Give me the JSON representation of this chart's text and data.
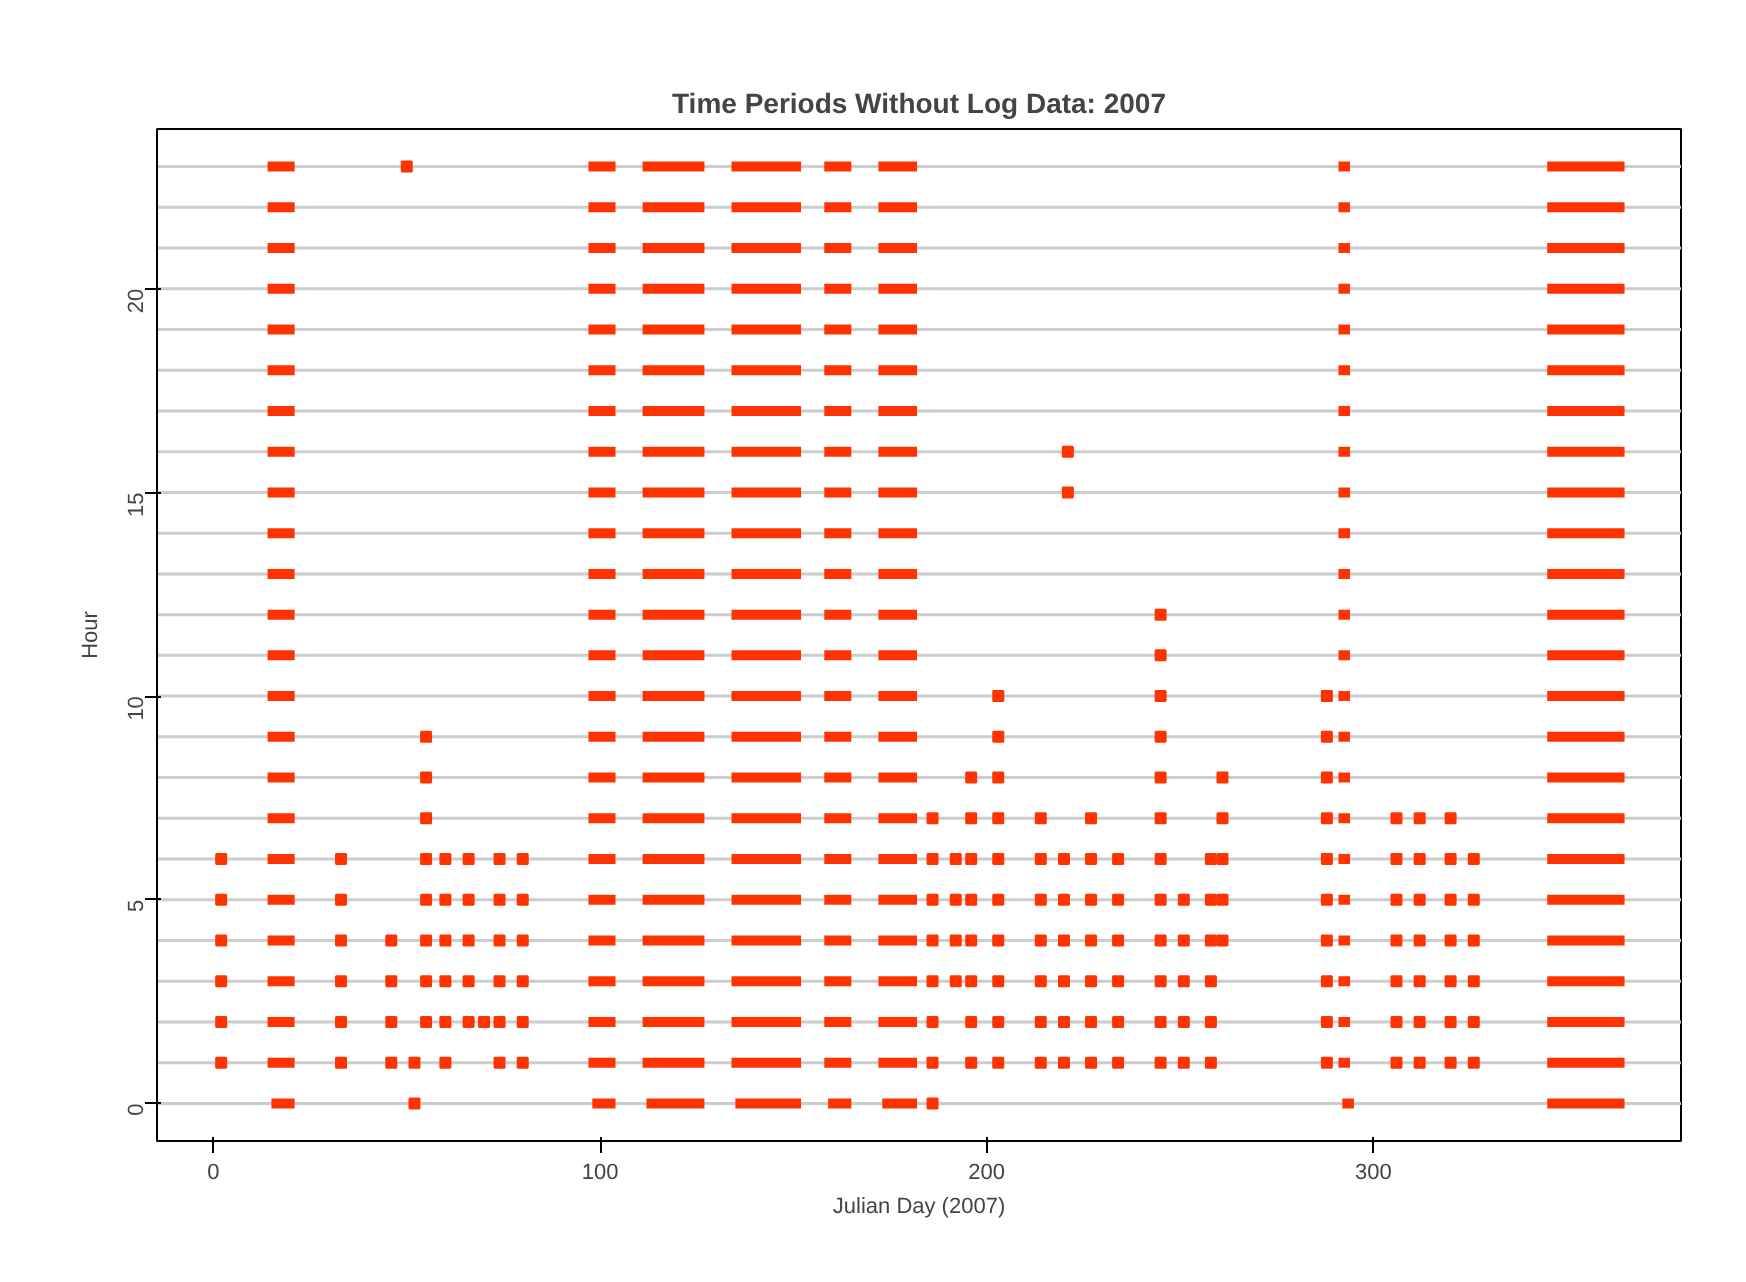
{
  "chart_data": {
    "type": "scatter",
    "title": "Time Periods Without Log Data: 2007",
    "xlabel": "Julian Day (2007)",
    "ylabel": "Hour",
    "xlim": [
      -14.6,
      379.6
    ],
    "ylim": [
      -0.92,
      23.92
    ],
    "xticks": [
      0,
      100,
      200,
      300
    ],
    "yticks": [
      0,
      5,
      10,
      15,
      20
    ],
    "grid": false,
    "marker": "square",
    "line_style": "solid",
    "ref_lines": [
      {
        "axis": "y",
        "value": 0,
        "color": "#cccccc"
      },
      {
        "axis": "y",
        "value": 1,
        "color": "#cccccc"
      },
      {
        "axis": "y",
        "value": 2,
        "color": "#cccccc"
      },
      {
        "axis": "y",
        "value": 3,
        "color": "#cccccc"
      },
      {
        "axis": "y",
        "value": 4,
        "color": "#cccccc"
      },
      {
        "axis": "y",
        "value": 5,
        "color": "#cccccc"
      },
      {
        "axis": "y",
        "value": 6,
        "color": "#cccccc"
      },
      {
        "axis": "y",
        "value": 7,
        "color": "#cccccc"
      },
      {
        "axis": "y",
        "value": 8,
        "color": "#cccccc"
      },
      {
        "axis": "y",
        "value": 9,
        "color": "#cccccc"
      },
      {
        "axis": "y",
        "value": 10,
        "color": "#cccccc"
      },
      {
        "axis": "y",
        "value": 11,
        "color": "#cccccc"
      },
      {
        "axis": "y",
        "value": 12,
        "color": "#cccccc"
      },
      {
        "axis": "y",
        "value": 13,
        "color": "#cccccc"
      },
      {
        "axis": "y",
        "value": 14,
        "color": "#cccccc"
      },
      {
        "axis": "y",
        "value": 15,
        "color": "#cccccc"
      },
      {
        "axis": "y",
        "value": 16,
        "color": "#cccccc"
      },
      {
        "axis": "y",
        "value": 17,
        "color": "#cccccc"
      },
      {
        "axis": "y",
        "value": 18,
        "color": "#cccccc"
      },
      {
        "axis": "y",
        "value": 19,
        "color": "#cccccc"
      },
      {
        "axis": "y",
        "value": 20,
        "color": "#cccccc"
      },
      {
        "axis": "y",
        "value": 21,
        "color": "#cccccc"
      },
      {
        "axis": "y",
        "value": 22,
        "color": "#cccccc"
      },
      {
        "axis": "y",
        "value": 23,
        "color": "#cccccc"
      }
    ],
    "series": [
      {
        "type": "line",
        "marker": "none",
        "color": "#ff3300",
        "x": [
          15,
          21,
          null,
          98,
          104,
          null,
          112,
          127,
          null,
          135,
          152,
          null,
          159,
          165,
          null,
          173,
          182,
          null,
          292,
          295,
          null,
          345,
          365
        ],
        "values": [
          0,
          0,
          null,
          0,
          0,
          null,
          0,
          0,
          null,
          0,
          0,
          null,
          0,
          0,
          null,
          0,
          0,
          null,
          0,
          0,
          null,
          0,
          0
        ]
      },
      {
        "type": "line",
        "marker": "none",
        "color": "#ff3300",
        "x": [
          14,
          21,
          null,
          97,
          104,
          null,
          111,
          127,
          null,
          134,
          152,
          null,
          158,
          165,
          null,
          172,
          182,
          null,
          291,
          294,
          null,
          345,
          365
        ],
        "values": [
          1,
          1,
          null,
          1,
          1,
          null,
          1,
          1,
          null,
          1,
          1,
          null,
          1,
          1,
          null,
          1,
          1,
          null,
          1,
          1,
          null,
          1,
          1
        ]
      },
      {
        "type": "line",
        "marker": "none",
        "color": "#ff3300",
        "x": [
          14,
          21,
          null,
          97,
          104,
          null,
          111,
          127,
          null,
          134,
          152,
          null,
          158,
          165,
          null,
          172,
          182,
          null,
          291,
          294,
          null,
          345,
          365
        ],
        "values": [
          2,
          2,
          null,
          2,
          2,
          null,
          2,
          2,
          null,
          2,
          2,
          null,
          2,
          2,
          null,
          2,
          2,
          null,
          2,
          2,
          null,
          2,
          2
        ]
      },
      {
        "type": "line",
        "marker": "none",
        "color": "#ff3300",
        "x": [
          14,
          21,
          null,
          97,
          104,
          null,
          111,
          127,
          null,
          134,
          152,
          null,
          158,
          165,
          null,
          172,
          182,
          null,
          291,
          294,
          null,
          345,
          365
        ],
        "values": [
          3,
          3,
          null,
          3,
          3,
          null,
          3,
          3,
          null,
          3,
          3,
          null,
          3,
          3,
          null,
          3,
          3,
          null,
          3,
          3,
          null,
          3,
          3
        ]
      },
      {
        "type": "line",
        "marker": "none",
        "color": "#ff3300",
        "x": [
          14,
          21,
          null,
          97,
          104,
          null,
          111,
          127,
          null,
          134,
          152,
          null,
          158,
          165,
          null,
          172,
          182,
          null,
          291,
          294,
          null,
          345,
          365
        ],
        "values": [
          4,
          4,
          null,
          4,
          4,
          null,
          4,
          4,
          null,
          4,
          4,
          null,
          4,
          4,
          null,
          4,
          4,
          null,
          4,
          4,
          null,
          4,
          4
        ]
      },
      {
        "type": "line",
        "marker": "none",
        "color": "#ff3300",
        "x": [
          14,
          21,
          null,
          97,
          104,
          null,
          111,
          127,
          null,
          134,
          152,
          null,
          158,
          165,
          null,
          172,
          182,
          null,
          291,
          294,
          null,
          345,
          365
        ],
        "values": [
          5,
          5,
          null,
          5,
          5,
          null,
          5,
          5,
          null,
          5,
          5,
          null,
          5,
          5,
          null,
          5,
          5,
          null,
          5,
          5,
          null,
          5,
          5
        ]
      },
      {
        "type": "line",
        "marker": "none",
        "color": "#ff3300",
        "x": [
          14,
          21,
          null,
          97,
          104,
          null,
          111,
          127,
          null,
          134,
          152,
          null,
          158,
          165,
          null,
          172,
          182,
          null,
          291,
          294,
          null,
          345,
          365
        ],
        "values": [
          6,
          6,
          null,
          6,
          6,
          null,
          6,
          6,
          null,
          6,
          6,
          null,
          6,
          6,
          null,
          6,
          6,
          null,
          6,
          6,
          null,
          6,
          6
        ]
      },
      {
        "type": "line",
        "marker": "none",
        "color": "#ff3300",
        "x": [
          14,
          21,
          null,
          97,
          104,
          null,
          111,
          127,
          null,
          134,
          152,
          null,
          158,
          165,
          null,
          172,
          182,
          null,
          291,
          294,
          null,
          345,
          365
        ],
        "values": [
          7,
          7,
          null,
          7,
          7,
          null,
          7,
          7,
          null,
          7,
          7,
          null,
          7,
          7,
          null,
          7,
          7,
          null,
          7,
          7,
          null,
          7,
          7
        ]
      },
      {
        "type": "line",
        "marker": "none",
        "color": "#ff3300",
        "x": [
          14,
          21,
          null,
          97,
          104,
          null,
          111,
          127,
          null,
          134,
          152,
          null,
          158,
          165,
          null,
          172,
          182,
          null,
          291,
          294,
          null,
          345,
          365
        ],
        "values": [
          8,
          8,
          null,
          8,
          8,
          null,
          8,
          8,
          null,
          8,
          8,
          null,
          8,
          8,
          null,
          8,
          8,
          null,
          8,
          8,
          null,
          8,
          8
        ]
      },
      {
        "type": "line",
        "marker": "none",
        "color": "#ff3300",
        "x": [
          14,
          21,
          null,
          97,
          104,
          null,
          111,
          127,
          null,
          134,
          152,
          null,
          158,
          165,
          null,
          172,
          182,
          null,
          291,
          294,
          null,
          345,
          365
        ],
        "values": [
          9,
          9,
          null,
          9,
          9,
          null,
          9,
          9,
          null,
          9,
          9,
          null,
          9,
          9,
          null,
          9,
          9,
          null,
          9,
          9,
          null,
          9,
          9
        ]
      },
      {
        "type": "line",
        "marker": "none",
        "color": "#ff3300",
        "x": [
          14,
          21,
          null,
          97,
          104,
          null,
          111,
          127,
          null,
          134,
          152,
          null,
          158,
          165,
          null,
          172,
          182,
          null,
          291,
          294,
          null,
          345,
          365
        ],
        "values": [
          10,
          10,
          null,
          10,
          10,
          null,
          10,
          10,
          null,
          10,
          10,
          null,
          10,
          10,
          null,
          10,
          10,
          null,
          10,
          10,
          null,
          10,
          10
        ]
      },
      {
        "type": "line",
        "marker": "none",
        "color": "#ff3300",
        "x": [
          14,
          21,
          null,
          97,
          104,
          null,
          111,
          127,
          null,
          134,
          152,
          null,
          158,
          165,
          null,
          172,
          182,
          null,
          291,
          294,
          null,
          345,
          365
        ],
        "values": [
          11,
          11,
          null,
          11,
          11,
          null,
          11,
          11,
          null,
          11,
          11,
          null,
          11,
          11,
          null,
          11,
          11,
          null,
          11,
          11,
          null,
          11,
          11
        ]
      },
      {
        "type": "line",
        "marker": "none",
        "color": "#ff3300",
        "x": [
          14,
          21,
          null,
          97,
          104,
          null,
          111,
          127,
          null,
          134,
          152,
          null,
          158,
          165,
          null,
          172,
          182,
          null,
          291,
          294,
          null,
          345,
          365
        ],
        "values": [
          12,
          12,
          null,
          12,
          12,
          null,
          12,
          12,
          null,
          12,
          12,
          null,
          12,
          12,
          null,
          12,
          12,
          null,
          12,
          12,
          null,
          12,
          12
        ]
      },
      {
        "type": "line",
        "marker": "none",
        "color": "#ff3300",
        "x": [
          14,
          21,
          null,
          97,
          104,
          null,
          111,
          127,
          null,
          134,
          152,
          null,
          158,
          165,
          null,
          172,
          182,
          null,
          291,
          294,
          null,
          345,
          365
        ],
        "values": [
          13,
          13,
          null,
          13,
          13,
          null,
          13,
          13,
          null,
          13,
          13,
          null,
          13,
          13,
          null,
          13,
          13,
          null,
          13,
          13,
          null,
          13,
          13
        ]
      },
      {
        "type": "line",
        "marker": "none",
        "color": "#ff3300",
        "x": [
          14,
          21,
          null,
          97,
          104,
          null,
          111,
          127,
          null,
          134,
          152,
          null,
          158,
          165,
          null,
          172,
          182,
          null,
          291,
          294,
          null,
          345,
          365
        ],
        "values": [
          14,
          14,
          null,
          14,
          14,
          null,
          14,
          14,
          null,
          14,
          14,
          null,
          14,
          14,
          null,
          14,
          14,
          null,
          14,
          14,
          null,
          14,
          14
        ]
      },
      {
        "type": "line",
        "marker": "none",
        "color": "#ff3300",
        "x": [
          14,
          21,
          null,
          97,
          104,
          null,
          111,
          127,
          null,
          134,
          152,
          null,
          158,
          165,
          null,
          172,
          182,
          null,
          291,
          294,
          null,
          345,
          365
        ],
        "values": [
          15,
          15,
          null,
          15,
          15,
          null,
          15,
          15,
          null,
          15,
          15,
          null,
          15,
          15,
          null,
          15,
          15,
          null,
          15,
          15,
          null,
          15,
          15
        ]
      },
      {
        "type": "line",
        "marker": "none",
        "color": "#ff3300",
        "x": [
          14,
          21,
          null,
          97,
          104,
          null,
          111,
          127,
          null,
          134,
          152,
          null,
          158,
          165,
          null,
          172,
          182,
          null,
          291,
          294,
          null,
          345,
          365
        ],
        "values": [
          16,
          16,
          null,
          16,
          16,
          null,
          16,
          16,
          null,
          16,
          16,
          null,
          16,
          16,
          null,
          16,
          16,
          null,
          16,
          16,
          null,
          16,
          16
        ]
      },
      {
        "type": "line",
        "marker": "none",
        "color": "#ff3300",
        "x": [
          14,
          21,
          null,
          97,
          104,
          null,
          111,
          127,
          null,
          134,
          152,
          null,
          158,
          165,
          null,
          172,
          182,
          null,
          291,
          294,
          null,
          345,
          365
        ],
        "values": [
          17,
          17,
          null,
          17,
          17,
          null,
          17,
          17,
          null,
          17,
          17,
          null,
          17,
          17,
          null,
          17,
          17,
          null,
          17,
          17,
          null,
          17,
          17
        ]
      },
      {
        "type": "line",
        "marker": "none",
        "color": "#ff3300",
        "x": [
          14,
          21,
          null,
          97,
          104,
          null,
          111,
          127,
          null,
          134,
          152,
          null,
          158,
          165,
          null,
          172,
          182,
          null,
          291,
          294,
          null,
          345,
          365
        ],
        "values": [
          18,
          18,
          null,
          18,
          18,
          null,
          18,
          18,
          null,
          18,
          18,
          null,
          18,
          18,
          null,
          18,
          18,
          null,
          18,
          18,
          null,
          18,
          18
        ]
      },
      {
        "type": "line",
        "marker": "none",
        "color": "#ff3300",
        "x": [
          14,
          21,
          null,
          97,
          104,
          null,
          111,
          127,
          null,
          134,
          152,
          null,
          158,
          165,
          null,
          172,
          182,
          null,
          291,
          294,
          null,
          345,
          365
        ],
        "values": [
          19,
          19,
          null,
          19,
          19,
          null,
          19,
          19,
          null,
          19,
          19,
          null,
          19,
          19,
          null,
          19,
          19,
          null,
          19,
          19,
          null,
          19,
          19
        ]
      },
      {
        "type": "line",
        "marker": "none",
        "color": "#ff3300",
        "x": [
          14,
          21,
          null,
          97,
          104,
          null,
          111,
          127,
          null,
          134,
          152,
          null,
          158,
          165,
          null,
          172,
          182,
          null,
          291,
          294,
          null,
          345,
          365
        ],
        "values": [
          20,
          20,
          null,
          20,
          20,
          null,
          20,
          20,
          null,
          20,
          20,
          null,
          20,
          20,
          null,
          20,
          20,
          null,
          20,
          20,
          null,
          20,
          20
        ]
      },
      {
        "type": "line",
        "marker": "none",
        "color": "#ff3300",
        "x": [
          14,
          21,
          null,
          97,
          104,
          null,
          111,
          127,
          null,
          134,
          152,
          null,
          158,
          165,
          null,
          172,
          182,
          null,
          291,
          294,
          null,
          345,
          365
        ],
        "values": [
          21,
          21,
          null,
          21,
          21,
          null,
          21,
          21,
          null,
          21,
          21,
          null,
          21,
          21,
          null,
          21,
          21,
          null,
          21,
          21,
          null,
          21,
          21
        ]
      },
      {
        "type": "line",
        "marker": "none",
        "color": "#ff3300",
        "x": [
          14,
          21,
          null,
          97,
          104,
          null,
          111,
          127,
          null,
          134,
          152,
          null,
          158,
          165,
          null,
          172,
          182,
          null,
          291,
          294,
          null,
          345,
          365
        ],
        "values": [
          22,
          22,
          null,
          22,
          22,
          null,
          22,
          22,
          null,
          22,
          22,
          null,
          22,
          22,
          null,
          22,
          22,
          null,
          22,
          22,
          null,
          22,
          22
        ]
      },
      {
        "type": "line",
        "marker": "none",
        "color": "#ff3300",
        "x": [
          14,
          21,
          null,
          97,
          104,
          null,
          111,
          127,
          null,
          134,
          152,
          null,
          158,
          165,
          null,
          172,
          182,
          null,
          291,
          294,
          null,
          345,
          365
        ],
        "values": [
          23,
          23,
          null,
          23,
          23,
          null,
          23,
          23,
          null,
          23,
          23,
          null,
          23,
          23,
          null,
          23,
          23,
          null,
          23,
          23,
          null,
          23,
          23
        ]
      },
      {
        "color": "#ff3300",
        "x": [
          52,
          186
        ],
        "values": [
          0,
          0
        ]
      },
      {
        "color": "#ff3300",
        "x": [
          2,
          33,
          46,
          52,
          60,
          74,
          80,
          186,
          196,
          203,
          214,
          220,
          227,
          234,
          245,
          251,
          258,
          288,
          306,
          312,
          320,
          326
        ],
        "values": [
          1,
          1,
          1,
          1,
          1,
          1,
          1,
          1,
          1,
          1,
          1,
          1,
          1,
          1,
          1,
          1,
          1,
          1,
          1,
          1,
          1,
          1
        ]
      },
      {
        "color": "#ff3300",
        "x": [
          2,
          33,
          46,
          55,
          60,
          66,
          70,
          74,
          80,
          186,
          196,
          203,
          214,
          220,
          227,
          234,
          245,
          251,
          258,
          288,
          306,
          312,
          320,
          326
        ],
        "values": [
          2,
          2,
          2,
          2,
          2,
          2,
          2,
          2,
          2,
          2,
          2,
          2,
          2,
          2,
          2,
          2,
          2,
          2,
          2,
          2,
          2,
          2,
          2,
          2
        ]
      },
      {
        "color": "#ff3300",
        "x": [
          2,
          33,
          46,
          55,
          60,
          66,
          74,
          80,
          186,
          192,
          196,
          203,
          214,
          220,
          227,
          234,
          245,
          251,
          258,
          288,
          306,
          312,
          320,
          326
        ],
        "values": [
          3,
          3,
          3,
          3,
          3,
          3,
          3,
          3,
          3,
          3,
          3,
          3,
          3,
          3,
          3,
          3,
          3,
          3,
          3,
          3,
          3,
          3,
          3,
          3
        ]
      },
      {
        "color": "#ff3300",
        "x": [
          2,
          33,
          46,
          55,
          60,
          66,
          74,
          80,
          186,
          192,
          196,
          203,
          214,
          220,
          227,
          234,
          245,
          251,
          258,
          261,
          288,
          306,
          312,
          320,
          326
        ],
        "values": [
          4,
          4,
          4,
          4,
          4,
          4,
          4,
          4,
          4,
          4,
          4,
          4,
          4,
          4,
          4,
          4,
          4,
          4,
          4,
          4,
          4,
          4,
          4,
          4,
          4
        ]
      },
      {
        "color": "#ff3300",
        "x": [
          2,
          33,
          55,
          60,
          66,
          74,
          80,
          186,
          192,
          196,
          203,
          214,
          220,
          227,
          234,
          245,
          251,
          258,
          261,
          288,
          306,
          312,
          320,
          326
        ],
        "values": [
          5,
          5,
          5,
          5,
          5,
          5,
          5,
          5,
          5,
          5,
          5,
          5,
          5,
          5,
          5,
          5,
          5,
          5,
          5,
          5,
          5,
          5,
          5,
          5
        ]
      },
      {
        "color": "#ff3300",
        "x": [
          2,
          33,
          55,
          60,
          66,
          74,
          80,
          186,
          192,
          196,
          203,
          214,
          220,
          227,
          234,
          245,
          258,
          261,
          288,
          306,
          312,
          320,
          326
        ],
        "values": [
          6,
          6,
          6,
          6,
          6,
          6,
          6,
          6,
          6,
          6,
          6,
          6,
          6,
          6,
          6,
          6,
          6,
          6,
          6,
          6,
          6,
          6,
          6
        ]
      },
      {
        "color": "#ff3300",
        "x": [
          55,
          186,
          196,
          203,
          214,
          227,
          245,
          261,
          288,
          306,
          312,
          320
        ],
        "values": [
          7,
          7,
          7,
          7,
          7,
          7,
          7,
          7,
          7,
          7,
          7,
          7
        ]
      },
      {
        "color": "#ff3300",
        "x": [
          55,
          196,
          203,
          245,
          261,
          288
        ],
        "values": [
          8,
          8,
          8,
          8,
          8,
          8
        ]
      },
      {
        "color": "#ff3300",
        "x": [
          55,
          203,
          245,
          288
        ],
        "values": [
          9,
          9,
          9,
          9
        ]
      },
      {
        "color": "#ff3300",
        "x": [
          203,
          245,
          288
        ],
        "values": [
          10,
          10,
          10
        ]
      },
      {
        "color": "#ff3300",
        "x": [
          245,
          245,
          221,
          221,
          50
        ],
        "values": [
          11,
          12,
          15,
          16,
          23
        ]
      }
    ]
  }
}
